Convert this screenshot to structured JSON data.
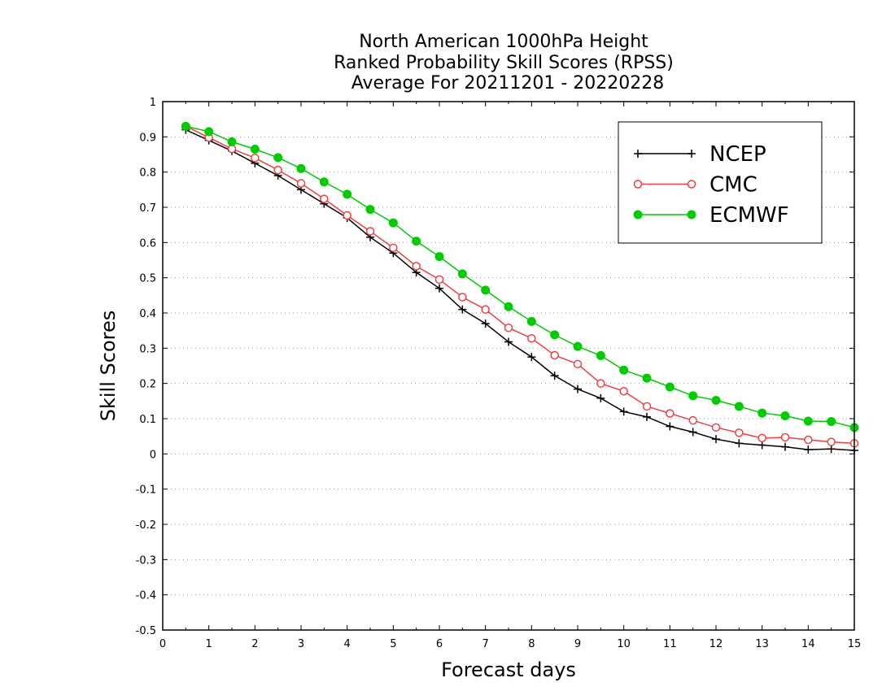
{
  "chart_data": {
    "type": "line",
    "title_lines": [
      "North American 1000hPa Height",
      "Ranked Probability Skill Scores (RPSS)",
      "Average For 20211201 - 20220228"
    ],
    "xlabel": "Forecast days",
    "ylabel": "Skill Scores",
    "xlim": [
      0,
      15
    ],
    "ylim": [
      -0.5,
      1
    ],
    "xticks": [
      "0",
      "1",
      "2",
      "3",
      "4",
      "5",
      "6",
      "7",
      "8",
      "9",
      "10",
      "11",
      "12",
      "13",
      "14",
      "15"
    ],
    "yticks": [
      "-0.5",
      "-0.4",
      "-0.3",
      "-0.2",
      "-0.1",
      "0",
      "0.1",
      "0.2",
      "0.3",
      "0.4",
      "0.5",
      "0.6",
      "0.7",
      "0.8",
      "0.9",
      "1"
    ],
    "grid": "dotted horizontal",
    "legend_position": "top-right",
    "x": [
      0.5,
      1,
      1.5,
      2,
      2.5,
      3,
      3.5,
      4,
      4.5,
      5,
      5.5,
      6,
      6.5,
      7,
      7.5,
      8,
      8.5,
      9,
      9.5,
      10,
      10.5,
      11,
      11.5,
      12,
      12.5,
      13,
      13.5,
      14,
      14.5,
      15
    ],
    "series": [
      {
        "name": "NCEP",
        "color": "#000000",
        "marker": "plus",
        "values": [
          0.92,
          0.89,
          0.86,
          0.825,
          0.79,
          0.75,
          0.71,
          0.67,
          0.615,
          0.57,
          0.515,
          0.47,
          0.41,
          0.37,
          0.318,
          0.275,
          0.222,
          0.184,
          0.158,
          0.12,
          0.105,
          0.078,
          0.062,
          0.042,
          0.03,
          0.025,
          0.02,
          0.012,
          0.014,
          0.01
        ]
      },
      {
        "name": "CMC",
        "color": "#f04040",
        "marker": "open-circle",
        "values": [
          0.93,
          0.898,
          0.866,
          0.84,
          0.806,
          0.768,
          0.724,
          0.677,
          0.632,
          0.585,
          0.533,
          0.495,
          0.445,
          0.41,
          0.358,
          0.328,
          0.28,
          0.255,
          0.2,
          0.178,
          0.135,
          0.115,
          0.095,
          0.075,
          0.06,
          0.045,
          0.047,
          0.04,
          0.034,
          0.03
        ]
      },
      {
        "name": "ECMWF",
        "color": "#00cc00",
        "marker": "filled-circle",
        "values": [
          0.93,
          0.915,
          0.886,
          0.865,
          0.841,
          0.81,
          0.772,
          0.737,
          0.694,
          0.656,
          0.604,
          0.56,
          0.511,
          0.465,
          0.418,
          0.376,
          0.338,
          0.305,
          0.279,
          0.238,
          0.215,
          0.19,
          0.165,
          0.152,
          0.135,
          0.116,
          0.108,
          0.093,
          0.092,
          0.075
        ]
      }
    ]
  }
}
